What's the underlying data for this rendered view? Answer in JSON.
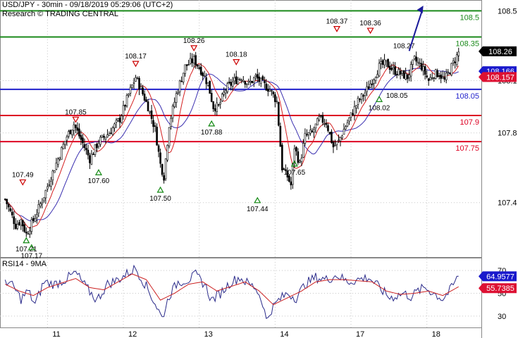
{
  "header": {
    "line1": "USD/JPY - 30min - 09/18/2019 05:29:06 (UTC+2)",
    "line2": "Research © TRADING CENTRAL"
  },
  "colors": {
    "candle": "#000000",
    "ma_fast": "#d42020",
    "ma_slow": "#3a2fb0",
    "green_level": "#1a8a1a",
    "blue_level": "#2222cc",
    "red_level": "#dd0022",
    "arrow": "#1a1a9a",
    "rsi": "#2a2a8a",
    "rsi_ma": "#cc2222",
    "badge_last": "#000000",
    "badge_blue": "#1a1acc",
    "badge_red": "#dd1133"
  },
  "chart_data": [
    {
      "type": "candlestick",
      "title": "USD/JPY - 30min - 09/18/2019 05:29:06 (UTC+2)",
      "ylim": [
        107.1,
        108.53
      ],
      "y_ticks": [
        "108.5",
        "108.1",
        "107.8",
        "107.4"
      ],
      "x_ticks": [
        "11",
        "12",
        "13",
        "14",
        "17",
        "18"
      ],
      "close_anchors": [
        {
          "i": 0,
          "v": 107.42
        },
        {
          "i": 6,
          "v": 107.27
        },
        {
          "i": 9,
          "v": 107.3
        },
        {
          "i": 12,
          "v": 107.22
        },
        {
          "i": 17,
          "v": 107.32
        },
        {
          "i": 22,
          "v": 107.44
        },
        {
          "i": 28,
          "v": 107.6
        },
        {
          "i": 35,
          "v": 107.78
        },
        {
          "i": 39,
          "v": 107.85
        },
        {
          "i": 44,
          "v": 107.74
        },
        {
          "i": 48,
          "v": 107.65
        },
        {
          "i": 53,
          "v": 107.75
        },
        {
          "i": 59,
          "v": 107.8
        },
        {
          "i": 65,
          "v": 107.88
        },
        {
          "i": 70,
          "v": 108.02
        },
        {
          "i": 74,
          "v": 108.12
        },
        {
          "i": 77,
          "v": 108.05
        },
        {
          "i": 81,
          "v": 107.95
        },
        {
          "i": 85,
          "v": 107.82
        },
        {
          "i": 88,
          "v": 107.62
        },
        {
          "i": 90,
          "v": 107.55
        },
        {
          "i": 93,
          "v": 107.85
        },
        {
          "i": 97,
          "v": 108.02
        },
        {
          "i": 102,
          "v": 108.18
        },
        {
          "i": 107,
          "v": 108.22
        },
        {
          "i": 111,
          "v": 108.16
        },
        {
          "i": 115,
          "v": 108.08
        },
        {
          "i": 118,
          "v": 107.95
        },
        {
          "i": 121,
          "v": 107.95
        },
        {
          "i": 125,
          "v": 108.05
        },
        {
          "i": 130,
          "v": 108.1
        },
        {
          "i": 134,
          "v": 108.12
        },
        {
          "i": 138,
          "v": 108.08
        },
        {
          "i": 142,
          "v": 108.12
        },
        {
          "i": 146,
          "v": 108.08
        },
        {
          "i": 150,
          "v": 108.05
        },
        {
          "i": 154,
          "v": 107.98
        },
        {
          "i": 157,
          "v": 107.6
        },
        {
          "i": 160,
          "v": 107.55
        },
        {
          "i": 162,
          "v": 107.5
        },
        {
          "i": 164,
          "v": 107.72
        },
        {
          "i": 167,
          "v": 107.62
        },
        {
          "i": 170,
          "v": 107.78
        },
        {
          "i": 174,
          "v": 107.8
        },
        {
          "i": 178,
          "v": 107.88
        },
        {
          "i": 182,
          "v": 107.86
        },
        {
          "i": 186,
          "v": 107.72
        },
        {
          "i": 189,
          "v": 107.75
        },
        {
          "i": 192,
          "v": 107.82
        },
        {
          "i": 196,
          "v": 107.9
        },
        {
          "i": 200,
          "v": 107.98
        },
        {
          "i": 204,
          "v": 108.03
        },
        {
          "i": 208,
          "v": 108.1
        },
        {
          "i": 212,
          "v": 108.18
        },
        {
          "i": 216,
          "v": 108.2
        },
        {
          "i": 220,
          "v": 108.16
        },
        {
          "i": 224,
          "v": 108.14
        },
        {
          "i": 228,
          "v": 108.12
        },
        {
          "i": 232,
          "v": 108.22
        },
        {
          "i": 236,
          "v": 108.18
        },
        {
          "i": 240,
          "v": 108.1
        },
        {
          "i": 243,
          "v": 108.14
        },
        {
          "i": 246,
          "v": 108.14
        },
        {
          "i": 249,
          "v": 108.1
        },
        {
          "i": 252,
          "v": 108.16
        },
        {
          "i": 255,
          "v": 108.22
        },
        {
          "i": 257,
          "v": 108.26
        }
      ],
      "levels": [
        {
          "value": 108.5,
          "label": "108.5",
          "color": "#1a8a1a"
        },
        {
          "value": 108.35,
          "label": "108.35",
          "color": "#1a8a1a"
        },
        {
          "value": 108.05,
          "label": "108.05",
          "color": "#2222cc"
        },
        {
          "value": 107.9,
          "label": "107.9",
          "color": "#dd0022"
        },
        {
          "value": 107.75,
          "label": "107.75",
          "color": "#dd0022"
        }
      ],
      "annotations": [
        {
          "i": 12,
          "value": 107.21,
          "label": "107.21",
          "kind": "low"
        },
        {
          "i": 15,
          "value": 107.17,
          "label": "107.17",
          "kind": "low"
        },
        {
          "i": 10,
          "value": 107.49,
          "label": "107.49",
          "kind": "high"
        },
        {
          "i": 40,
          "value": 107.85,
          "label": "107.85",
          "kind": "high"
        },
        {
          "i": 53,
          "value": 107.6,
          "label": "107.60",
          "kind": "low"
        },
        {
          "i": 74,
          "value": 108.17,
          "label": "108.17",
          "kind": "high"
        },
        {
          "i": 88,
          "value": 107.5,
          "label": "107.50",
          "kind": "low"
        },
        {
          "i": 107,
          "value": 108.26,
          "label": "108.26",
          "kind": "high"
        },
        {
          "i": 117,
          "value": 107.88,
          "label": "107.88",
          "kind": "low"
        },
        {
          "i": 131,
          "value": 108.18,
          "label": "108.18",
          "kind": "high"
        },
        {
          "i": 143,
          "value": 107.44,
          "label": "107.44",
          "kind": "low"
        },
        {
          "i": 164,
          "value": 107.65,
          "label": "107.65",
          "kind": "low"
        },
        {
          "i": 188,
          "value": 108.37,
          "label": "108.37",
          "kind": "high"
        },
        {
          "i": 207,
          "value": 108.36,
          "label": "108.36",
          "kind": "high"
        },
        {
          "i": 212,
          "value": 108.02,
          "label": "108.02",
          "kind": "low"
        },
        {
          "i": 222,
          "value": 108.05,
          "label": "108.05",
          "kind": "text"
        },
        {
          "i": 226,
          "value": 108.27,
          "label": "108.27",
          "kind": "text"
        }
      ],
      "forecast_arrow": {
        "from_i": 229,
        "from_value": 108.27,
        "to_i": 237,
        "to_value": 108.53
      },
      "badges": [
        {
          "label": "108.26",
          "value": 108.26,
          "color": "#000000"
        },
        {
          "label": "108.166",
          "value": 108.166,
          "color": "#1a1acc"
        },
        {
          "label": "108.157",
          "value": 108.157,
          "color": "#dd1133"
        }
      ]
    },
    {
      "type": "line",
      "title": "RSI14 - 9MA",
      "ylim": [
        20,
        80
      ],
      "y_ticks": [
        "70",
        "50",
        "30"
      ],
      "series": [
        {
          "name": "RSI14",
          "anchors": [
            {
              "i": 0,
              "v": 62
            },
            {
              "i": 5,
              "v": 55
            },
            {
              "i": 9,
              "v": 45
            },
            {
              "i": 13,
              "v": 52
            },
            {
              "i": 17,
              "v": 40
            },
            {
              "i": 22,
              "v": 60
            },
            {
              "i": 28,
              "v": 58
            },
            {
              "i": 34,
              "v": 62
            },
            {
              "i": 40,
              "v": 68
            },
            {
              "i": 46,
              "v": 55
            },
            {
              "i": 52,
              "v": 44
            },
            {
              "i": 58,
              "v": 58
            },
            {
              "i": 64,
              "v": 62
            },
            {
              "i": 70,
              "v": 68
            },
            {
              "i": 74,
              "v": 72
            },
            {
              "i": 80,
              "v": 56
            },
            {
              "i": 86,
              "v": 38
            },
            {
              "i": 89,
              "v": 28
            },
            {
              "i": 93,
              "v": 48
            },
            {
              "i": 98,
              "v": 60
            },
            {
              "i": 104,
              "v": 62
            },
            {
              "i": 108,
              "v": 66
            },
            {
              "i": 113,
              "v": 58
            },
            {
              "i": 117,
              "v": 44
            },
            {
              "i": 122,
              "v": 50
            },
            {
              "i": 128,
              "v": 60
            },
            {
              "i": 133,
              "v": 64
            },
            {
              "i": 138,
              "v": 58
            },
            {
              "i": 142,
              "v": 55
            },
            {
              "i": 146,
              "v": 42
            },
            {
              "i": 148,
              "v": 26
            },
            {
              "i": 151,
              "v": 36
            },
            {
              "i": 155,
              "v": 44
            },
            {
              "i": 160,
              "v": 50
            },
            {
              "i": 165,
              "v": 46
            },
            {
              "i": 170,
              "v": 58
            },
            {
              "i": 176,
              "v": 64
            },
            {
              "i": 182,
              "v": 62
            },
            {
              "i": 188,
              "v": 66
            },
            {
              "i": 194,
              "v": 60
            },
            {
              "i": 200,
              "v": 62
            },
            {
              "i": 206,
              "v": 64
            },
            {
              "i": 210,
              "v": 58
            },
            {
              "i": 214,
              "v": 52
            },
            {
              "i": 218,
              "v": 46
            },
            {
              "i": 222,
              "v": 48
            },
            {
              "i": 226,
              "v": 50
            },
            {
              "i": 230,
              "v": 47
            },
            {
              "i": 234,
              "v": 52
            },
            {
              "i": 238,
              "v": 55
            },
            {
              "i": 243,
              "v": 50
            },
            {
              "i": 248,
              "v": 45
            },
            {
              "i": 252,
              "v": 52
            },
            {
              "i": 255,
              "v": 60
            },
            {
              "i": 257,
              "v": 64.9577
            }
          ]
        },
        {
          "name": "9MA",
          "anchors": [
            {
              "i": 0,
              "v": 58
            },
            {
              "i": 8,
              "v": 52
            },
            {
              "i": 16,
              "v": 48
            },
            {
              "i": 24,
              "v": 55
            },
            {
              "i": 32,
              "v": 59
            },
            {
              "i": 40,
              "v": 63
            },
            {
              "i": 48,
              "v": 55
            },
            {
              "i": 56,
              "v": 53
            },
            {
              "i": 64,
              "v": 60
            },
            {
              "i": 72,
              "v": 67
            },
            {
              "i": 80,
              "v": 62
            },
            {
              "i": 88,
              "v": 44
            },
            {
              "i": 96,
              "v": 50
            },
            {
              "i": 104,
              "v": 58
            },
            {
              "i": 112,
              "v": 60
            },
            {
              "i": 120,
              "v": 52
            },
            {
              "i": 128,
              "v": 56
            },
            {
              "i": 136,
              "v": 60
            },
            {
              "i": 144,
              "v": 52
            },
            {
              "i": 152,
              "v": 40
            },
            {
              "i": 160,
              "v": 46
            },
            {
              "i": 168,
              "v": 52
            },
            {
              "i": 176,
              "v": 60
            },
            {
              "i": 184,
              "v": 62
            },
            {
              "i": 192,
              "v": 62
            },
            {
              "i": 200,
              "v": 61
            },
            {
              "i": 208,
              "v": 60
            },
            {
              "i": 216,
              "v": 52
            },
            {
              "i": 224,
              "v": 49
            },
            {
              "i": 232,
              "v": 50
            },
            {
              "i": 240,
              "v": 52
            },
            {
              "i": 248,
              "v": 48
            },
            {
              "i": 257,
              "v": 55.7385
            }
          ]
        }
      ],
      "badges": [
        {
          "label": "64.9577",
          "value": 64.9577,
          "color": "#1a1acc"
        },
        {
          "label": "55.7385",
          "value": 55.7385,
          "color": "#dd1133"
        }
      ]
    }
  ]
}
